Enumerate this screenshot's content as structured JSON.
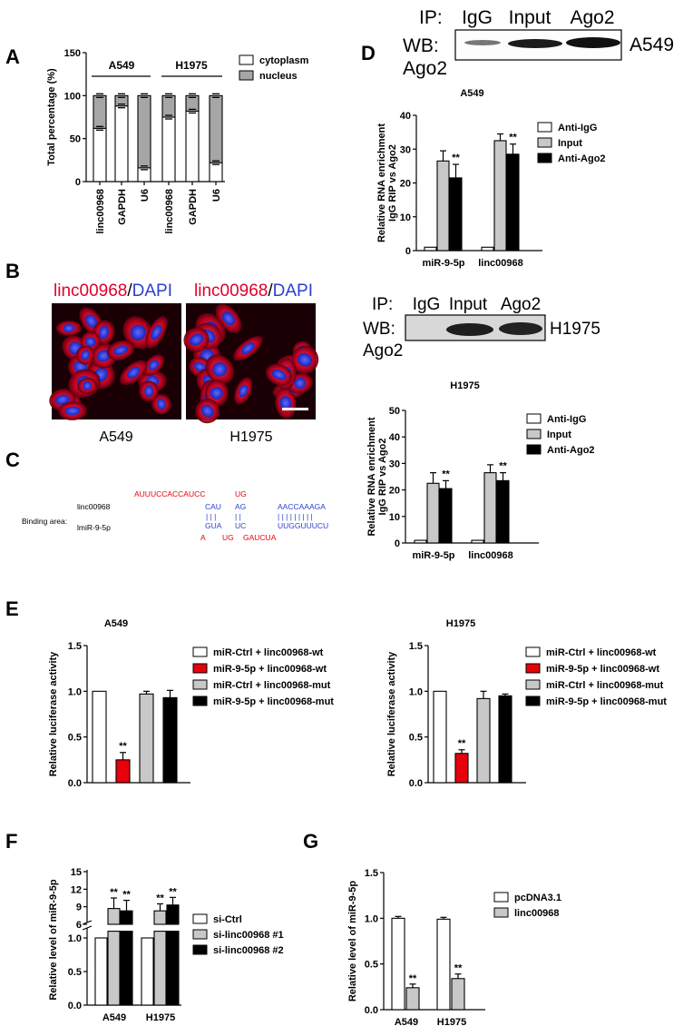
{
  "panel_labels": {
    "A": "A",
    "B": "B",
    "C": "C",
    "D": "D",
    "E": "E",
    "F": "F",
    "G": "G"
  },
  "colors": {
    "white": "#ffffff",
    "gray": "#a6a6a6",
    "lightgray": "#c8c8c8",
    "black": "#000000",
    "red": "#e8000b",
    "blue": "#2b3fd0",
    "dapi_red": "#e0002a"
  },
  "panelB": {
    "labels": {
      "a549_stain_red": "linc00968",
      "a549_stain_sep": "/",
      "a549_stain_blue": "DAPI",
      "h1975_stain_red": "linc00968",
      "h1975_stain_sep": "/",
      "h1975_stain_blue": "DAPI",
      "a549": "A549",
      "h1975": "H1975"
    }
  },
  "panelC": {
    "binding_area": "Binding area:",
    "lnc_name": "linc00968",
    "mir_name": "lmiR-9-5p",
    "lnc_top_red": "AUUUCCACCAUCC",
    "lnc_top_red2": "UG",
    "lnc_seq1": "CAU",
    "lnc_seq2": "AG",
    "lnc_seq3": "AACCAAAGA",
    "bars1": "| | |",
    "bars2": "| |",
    "bars3": "| | | | | | | | |",
    "mir_seq1": "GUA",
    "mir_seq2": "UC",
    "mir_seq3": "UUGGUUUCU",
    "mir_bot_red1": "A",
    "mir_bot_red2": "UG",
    "mir_bot_red3": "GAUCUA"
  },
  "western": {
    "a549": {
      "ip": "IP:",
      "lanes": [
        "IgG",
        "Input",
        "Ago2"
      ],
      "wb1": "WB:",
      "wb2": "Ago2",
      "cell": "A549"
    },
    "h1975": {
      "ip": "IP:",
      "lanes": [
        "IgG",
        "Input",
        "Ago2"
      ],
      "wb1": "WB:",
      "wb2": "Ago2",
      "cell": "H1975"
    }
  },
  "chart_data": [
    {
      "id": "A",
      "type": "bar",
      "stacked": true,
      "groups": [
        "A549",
        "H1975"
      ],
      "categories": [
        "linc00968",
        "GAPDH",
        "U6",
        "linc00968",
        "GAPDH",
        "U6"
      ],
      "series": [
        {
          "name": "cytoplasm",
          "values": [
            62,
            88,
            16,
            75,
            82,
            22
          ]
        },
        {
          "name": "nucleus",
          "values": [
            38,
            12,
            84,
            25,
            18,
            78
          ]
        }
      ],
      "ylabel": "Total percentage (%)",
      "ylim": [
        0,
        150
      ],
      "yticks": [
        0,
        50,
        100,
        150
      ]
    },
    {
      "id": "D1",
      "type": "bar",
      "title": "A549",
      "categories": [
        "miR-9-5p",
        "linc00968"
      ],
      "series": [
        {
          "name": "Anti-IgG",
          "values": [
            1,
            1
          ]
        },
        {
          "name": "Input",
          "values": [
            26.5,
            32.5
          ]
        },
        {
          "name": "Anti-Ago2",
          "values": [
            21.5,
            28.5
          ]
        }
      ],
      "errors": [
        [
          0.2,
          0.2
        ],
        [
          3,
          2
        ],
        [
          4,
          3
        ]
      ],
      "sig": [
        "",
        "**",
        "",
        "",
        "",
        "**"
      ],
      "ylabel": "Relative RNA enrichment IgG RIP vs Ago2",
      "ylim": [
        0,
        40
      ],
      "yticks": [
        0,
        10,
        20,
        30,
        40
      ]
    },
    {
      "id": "D2",
      "type": "bar",
      "title": "H1975",
      "categories": [
        "miR-9-5p",
        "linc00968"
      ],
      "series": [
        {
          "name": "Anti-IgG",
          "values": [
            1,
            1
          ]
        },
        {
          "name": "Input",
          "values": [
            22.5,
            26.5
          ]
        },
        {
          "name": "Anti-Ago2",
          "values": [
            20.5,
            23.5
          ]
        }
      ],
      "errors": [
        [
          0.2,
          0.2
        ],
        [
          4,
          3
        ],
        [
          3,
          3
        ]
      ],
      "sig": [
        "",
        "**",
        "",
        "",
        "",
        "**"
      ],
      "ylabel": "Relative RNA enrichment IgG RIP vs Ago2",
      "ylim": [
        0,
        50
      ],
      "yticks": [
        0,
        10,
        20,
        30,
        40,
        50
      ]
    },
    {
      "id": "E1",
      "type": "bar",
      "title": "A549",
      "series": [
        {
          "name": "miR-Ctrl + linc00968-wt",
          "value": 1.0,
          "err": 0
        },
        {
          "name": "miR-9-5p + linc00968-wt",
          "value": 0.25,
          "err": 0.08,
          "sig": "**"
        },
        {
          "name": "miR-Ctrl + linc00968-mut",
          "value": 0.97,
          "err": 0.03
        },
        {
          "name": "miR-9-5p + linc00968-mut",
          "value": 0.93,
          "err": 0.08
        }
      ],
      "ylabel": "Relative luciferase activity",
      "ylim": [
        0,
        1.5
      ],
      "yticks": [
        "0.0",
        "0.5",
        "1.0",
        "1.5"
      ]
    },
    {
      "id": "E2",
      "type": "bar",
      "title": "H1975",
      "series": [
        {
          "name": "miR-Ctrl + linc00968-wt",
          "value": 1.0,
          "err": 0
        },
        {
          "name": "miR-9-5p + linc00968-wt",
          "value": 0.32,
          "err": 0.04,
          "sig": "**"
        },
        {
          "name": "miR-Ctrl + linc00968-mut",
          "value": 0.92,
          "err": 0.08
        },
        {
          "name": "miR-9-5p + linc00968-mut",
          "value": 0.95,
          "err": 0.02
        }
      ],
      "ylabel": "Relative luciferase activity",
      "ylim": [
        0,
        1.5
      ],
      "yticks": [
        "0.0",
        "0.5",
        "1.0",
        "1.5"
      ]
    },
    {
      "id": "F",
      "type": "bar",
      "broken_axis": true,
      "categories": [
        "A549",
        "H1975"
      ],
      "series": [
        {
          "name": "si-Ctrl",
          "values": [
            1.0,
            1.0
          ]
        },
        {
          "name": "si-linc00968 #1",
          "values": [
            8.7,
            8.3
          ]
        },
        {
          "name": "si-linc00968 #2",
          "values": [
            8.3,
            9.3
          ]
        }
      ],
      "errors": [
        [
          0.02,
          0.02
        ],
        [
          1.8,
          1.2
        ],
        [
          1.8,
          1.3
        ]
      ],
      "sig": [
        "",
        "**",
        "**",
        "",
        "**",
        "**"
      ],
      "ylabel": "Relative level of miR-9-5p",
      "yticks_low": [
        "0.0",
        "0.5",
        "1.0"
      ],
      "yticks_high": [
        "6",
        "9",
        "12",
        "15"
      ]
    },
    {
      "id": "G",
      "type": "bar",
      "categories": [
        "A549",
        "H1975"
      ],
      "series": [
        {
          "name": "pcDNA3.1",
          "values": [
            1.0,
            0.99
          ]
        },
        {
          "name": "linc00968",
          "values": [
            0.24,
            0.34
          ]
        }
      ],
      "errors": [
        [
          0.02,
          0.02
        ],
        [
          0.04,
          0.05
        ]
      ],
      "sig": [
        "",
        "**",
        "",
        "**"
      ],
      "ylabel": "Relative level of miR-9-5p",
      "ylim": [
        0,
        1.5
      ],
      "yticks": [
        "0.0",
        "0.5",
        "1.0",
        "1.5"
      ]
    }
  ]
}
